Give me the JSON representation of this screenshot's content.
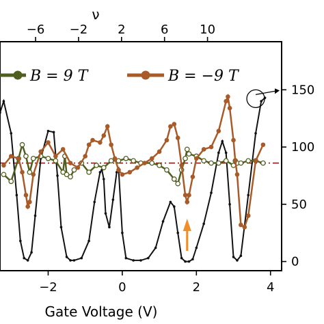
{
  "chart_data": {
    "type": "line",
    "xlabel": "Gate Voltage (V)",
    "top_xlabel": "ν",
    "xlim": [
      -3.3,
      4.3
    ],
    "bottom_ticks": [
      "−2",
      "0",
      "2",
      "4"
    ],
    "bottom_tick_values": [
      -2,
      0,
      2,
      4
    ],
    "top_ticks": [
      "−6",
      "−2",
      "2",
      "6",
      "10"
    ],
    "top_tick_values": [
      -6,
      -2,
      2,
      6,
      10
    ],
    "right_ticks": [
      "0",
      "50",
      "100",
      "150"
    ],
    "right_tick_values": [
      0,
      50,
      100,
      150
    ],
    "right_ylim": [
      -8,
      192
    ],
    "left_ylim": [
      0,
      1
    ],
    "reference_line": {
      "y": 0.47,
      "color": "#8b1a1a",
      "style": "dash-dot"
    },
    "arrow_annotation": {
      "x": 1.75,
      "color": "#f28c28"
    },
    "rotation_icon": {
      "x": 3.6,
      "y_right": 150
    },
    "colors": {
      "B9": "#4f5f1d",
      "Bm9": "#a85a28",
      "black": "#111111"
    },
    "legend": [
      {
        "label": "B = 9 T",
        "color": "#4f5f1d"
      },
      {
        "label": "B = −9 T",
        "color": "#a85a28"
      }
    ],
    "series": [
      {
        "name": "B = 9 T",
        "axis": "left",
        "x": [
          -3.2,
          -3.0,
          -2.8,
          -2.7,
          -2.6,
          -2.5,
          -2.4,
          -2.2,
          -2.0,
          -1.8,
          -1.6,
          -1.55,
          -1.5,
          -1.4,
          -1.3,
          -1.1,
          -0.9,
          -0.7,
          -0.5,
          -0.3,
          -0.1,
          0.1,
          0.3,
          0.5,
          0.8,
          1.0,
          1.2,
          1.4,
          1.5,
          1.6,
          1.7,
          1.75,
          1.8,
          2.0,
          2.2,
          2.4,
          2.6,
          2.8,
          3.0,
          3.05,
          3.1,
          3.2,
          3.4,
          3.6,
          3.8
        ],
        "y": [
          0.42,
          0.39,
          0.49,
          0.55,
          0.5,
          0.43,
          0.49,
          0.5,
          0.49,
          0.48,
          0.43,
          0.5,
          0.42,
          0.41,
          0.44,
          0.47,
          0.43,
          0.46,
          0.45,
          0.48,
          0.48,
          0.49,
          0.48,
          0.47,
          0.47,
          0.46,
          0.44,
          0.4,
          0.38,
          0.44,
          0.49,
          0.53,
          0.51,
          0.5,
          0.48,
          0.47,
          0.47,
          0.48,
          0.46,
          0.48,
          0.47,
          0.47,
          0.48,
          0.48,
          0.47
        ]
      },
      {
        "name": "B = −9 T",
        "axis": "left",
        "x": [
          -3.2,
          -3.0,
          -2.8,
          -2.7,
          -2.6,
          -2.55,
          -2.5,
          -2.4,
          -2.2,
          -2.0,
          -1.8,
          -1.6,
          -1.4,
          -1.2,
          -1.0,
          -0.9,
          -0.8,
          -0.6,
          -0.5,
          -0.4,
          -0.3,
          -0.2,
          -0.1,
          0.0,
          0.2,
          0.4,
          0.6,
          0.8,
          1.0,
          1.2,
          1.3,
          1.4,
          1.5,
          1.6,
          1.7,
          1.75,
          1.8,
          1.9,
          2.0,
          2.2,
          2.4,
          2.6,
          2.8,
          2.85,
          2.9,
          3.0,
          3.05,
          3.1,
          3.2,
          3.3,
          3.4,
          3.6,
          3.8
        ],
        "y": [
          0.46,
          0.5,
          0.49,
          0.43,
          0.33,
          0.28,
          0.3,
          0.42,
          0.52,
          0.56,
          0.5,
          0.53,
          0.47,
          0.45,
          0.5,
          0.55,
          0.57,
          0.56,
          0.59,
          0.63,
          0.55,
          0.49,
          0.44,
          0.42,
          0.43,
          0.45,
          0.47,
          0.49,
          0.52,
          0.57,
          0.63,
          0.64,
          0.58,
          0.46,
          0.33,
          0.3,
          0.33,
          0.41,
          0.49,
          0.53,
          0.54,
          0.61,
          0.74,
          0.76,
          0.71,
          0.57,
          0.48,
          0.42,
          0.2,
          0.19,
          0.24,
          0.48,
          0.55
        ]
      },
      {
        "name": "black trace",
        "axis": "right",
        "x": [
          -3.3,
          -3.2,
          -3.0,
          -2.85,
          -2.75,
          -2.65,
          -2.55,
          -2.45,
          -2.35,
          -2.2,
          -2.0,
          -1.85,
          -1.75,
          -1.65,
          -1.5,
          -1.4,
          -1.3,
          -1.1,
          -0.9,
          -0.75,
          -0.6,
          -0.55,
          -0.5,
          -0.45,
          -0.35,
          -0.25,
          -0.15,
          -0.1,
          0.0,
          0.1,
          0.3,
          0.5,
          0.7,
          0.9,
          1.1,
          1.3,
          1.4,
          1.5,
          1.6,
          1.7,
          1.8,
          1.9,
          2.0,
          2.2,
          2.4,
          2.6,
          2.7,
          2.8,
          2.9,
          3.0,
          3.1,
          3.2,
          3.4,
          3.6,
          3.75,
          3.85
        ],
        "y": [
          130,
          140,
          112,
          58,
          18,
          3,
          1,
          8,
          40,
          90,
          114,
          113,
          75,
          30,
          4,
          1,
          1,
          3,
          18,
          52,
          78,
          80,
          72,
          42,
          30,
          54,
          78,
          81,
          25,
          3,
          1,
          1,
          3,
          12,
          35,
          52,
          48,
          25,
          3,
          0,
          0,
          2,
          12,
          33,
          60,
          95,
          105,
          95,
          50,
          4,
          1,
          5,
          58,
          112,
          140,
          143
        ]
      }
    ]
  }
}
